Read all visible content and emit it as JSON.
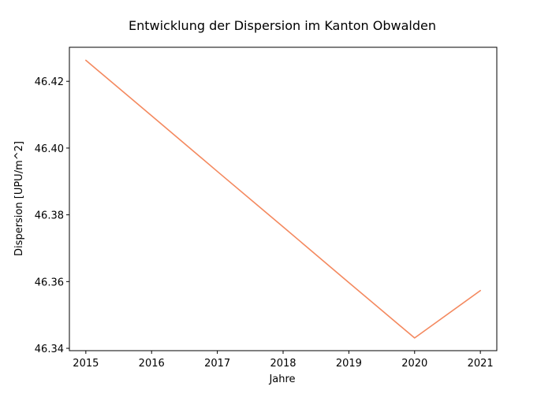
{
  "chart_data": {
    "type": "line",
    "title": "Entwicklung der Dispersion im Kanton Obwalden",
    "xlabel": "Jahre",
    "ylabel": "Dispersion [UPU/m^2]",
    "x": [
      2015,
      2016,
      2017,
      2018,
      2019,
      2020,
      2021
    ],
    "series": [
      {
        "values": [
          46.4263,
          46.4097,
          46.393,
          46.3764,
          46.3597,
          46.3431,
          46.3573
        ],
        "color": "#f4895f"
      }
    ],
    "xlim": [
      2014.75,
      2021.25
    ],
    "ylim": [
      46.3393,
      46.4302
    ],
    "xticks": [
      2015,
      2016,
      2017,
      2018,
      2019,
      2020,
      2021
    ],
    "yticks": [
      46.34,
      46.36,
      46.38,
      46.4,
      46.42
    ],
    "ytick_labels": [
      "46.34",
      "46.36",
      "46.38",
      "46.40",
      "46.42"
    ],
    "grid": false,
    "legend": "none"
  }
}
